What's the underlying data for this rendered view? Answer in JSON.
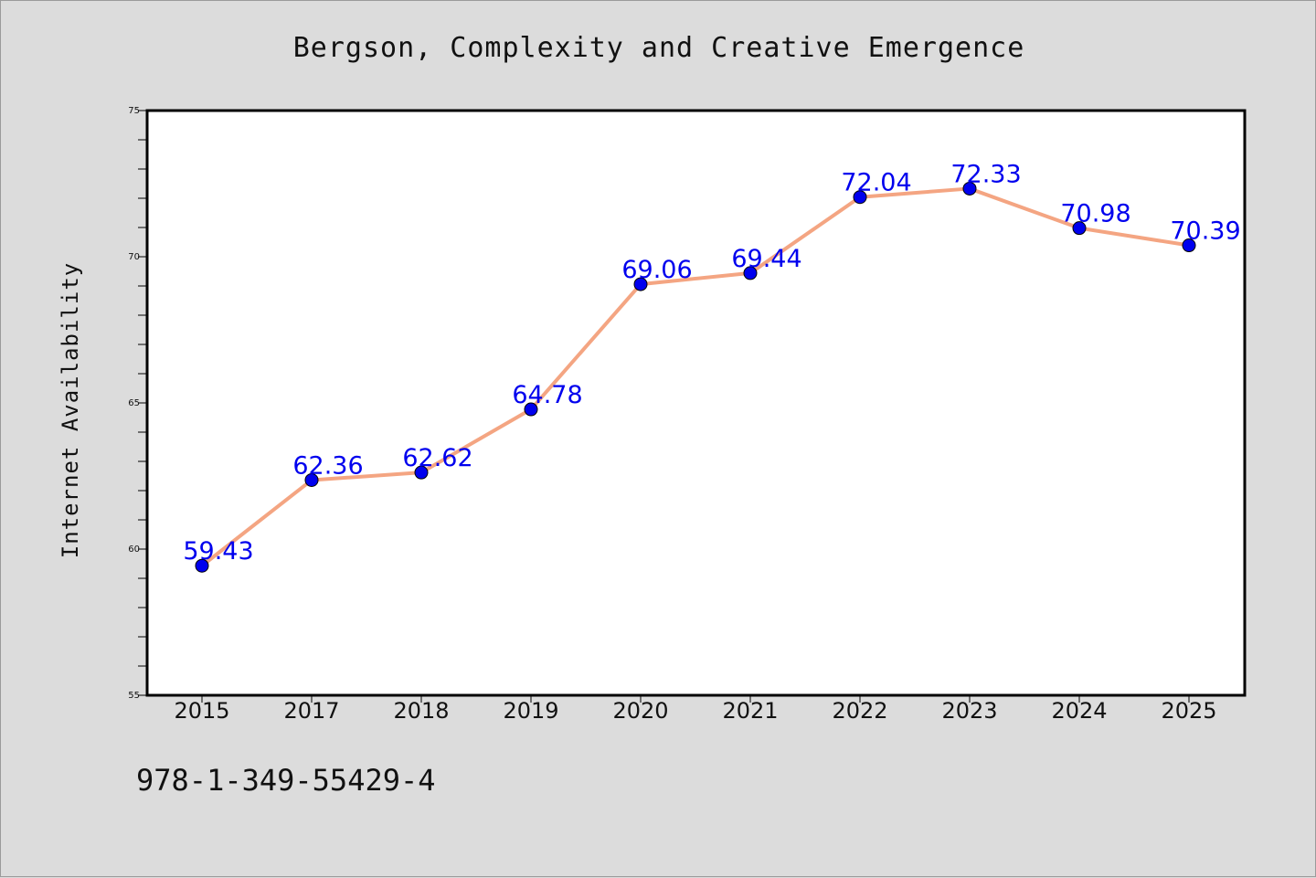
{
  "chart_data": {
    "type": "line",
    "title": "Bergson, Complexity and Creative Emergence",
    "xlabel": "",
    "ylabel": "Internet Availability",
    "categories": [
      "2015",
      "2017",
      "2018",
      "2019",
      "2020",
      "2021",
      "2022",
      "2023",
      "2024",
      "2025"
    ],
    "series": [
      {
        "values": [
          59.43,
          62.36,
          62.62,
          64.78,
          69.06,
          69.44,
          72.04,
          72.33,
          70.98,
          70.39
        ],
        "line_color": "#f4a582",
        "marker_color": "#0000ee"
      }
    ],
    "data_labels": [
      "59.43",
      "62.36",
      "62.62",
      "64.78",
      "69.06",
      "69.44",
      "72.04",
      "72.33",
      "70.98",
      "70.39"
    ],
    "ylim": [
      55,
      75
    ],
    "yticks": [
      55,
      60,
      65,
      70,
      75
    ],
    "grid": false,
    "legend": "none"
  },
  "footer": {
    "isbn": "978-1-349-55429-4"
  },
  "colors": {
    "background": "#dcdcdc",
    "plot_background": "#ffffff"
  }
}
